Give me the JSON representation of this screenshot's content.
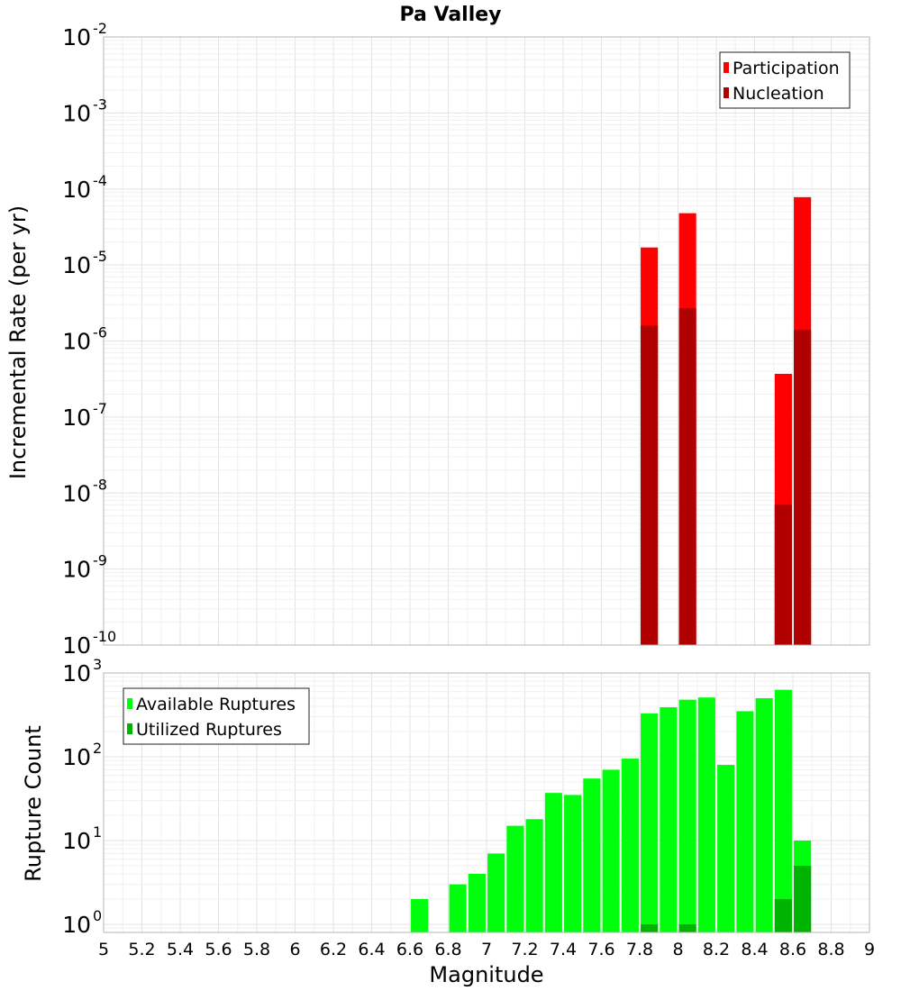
{
  "chart_data": [
    {
      "type": "bar",
      "title": "Pa Valley",
      "ylabel": "Incremental Rate (per yr)",
      "xlabel": "",
      "xlim": [
        5,
        9
      ],
      "ylim": [
        1e-10,
        0.01
      ],
      "yscale": "log",
      "y_ticks": [
        {
          "base": "10",
          "exp": "-10",
          "value": 1e-10
        },
        {
          "base": "10",
          "exp": "-9",
          "value": 1e-09
        },
        {
          "base": "10",
          "exp": "-8",
          "value": 1e-08
        },
        {
          "base": "10",
          "exp": "-7",
          "value": 1e-07
        },
        {
          "base": "10",
          "exp": "-6",
          "value": 1e-06
        },
        {
          "base": "10",
          "exp": "-5",
          "value": 1e-05
        },
        {
          "base": "10",
          "exp": "-4",
          "value": 0.0001
        },
        {
          "base": "10",
          "exp": "-3",
          "value": 0.001
        },
        {
          "base": "10",
          "exp": "-2",
          "value": 0.01
        }
      ],
      "grid": true,
      "legend_position": "top-right",
      "bar_width": 0.09,
      "series": [
        {
          "name": "Participation",
          "color": "#ff0000",
          "x": [
            7.85,
            8.05,
            8.55,
            8.65
          ],
          "values": [
            1.7e-05,
            4.8e-05,
            3.7e-07,
            7.8e-05
          ]
        },
        {
          "name": "Nucleation",
          "color": "#b00000",
          "x": [
            7.85,
            8.05,
            8.55,
            8.65
          ],
          "values": [
            1.6e-06,
            2.7e-06,
            7e-09,
            1.4e-06
          ]
        }
      ]
    },
    {
      "type": "bar",
      "title": "",
      "ylabel": "Rupture Count",
      "xlabel": "Magnitude",
      "xlim": [
        5,
        9
      ],
      "ylim": [
        0.8,
        1000
      ],
      "yscale": "log",
      "x_ticks": [
        "5",
        "5.2",
        "5.4",
        "5.6",
        "5.8",
        "6",
        "6.2",
        "6.4",
        "6.6",
        "6.8",
        "7",
        "7.2",
        "7.4",
        "7.6",
        "7.8",
        "8",
        "8.2",
        "8.4",
        "8.6",
        "8.8",
        "9"
      ],
      "y_ticks": [
        {
          "base": "10",
          "exp": "0",
          "value": 1
        },
        {
          "base": "10",
          "exp": "1",
          "value": 10
        },
        {
          "base": "10",
          "exp": "2",
          "value": 100
        },
        {
          "base": "10",
          "exp": "3",
          "value": 1000
        }
      ],
      "grid": true,
      "legend_position": "top-left",
      "bar_width": 0.09,
      "series": [
        {
          "name": "Available Ruptures",
          "color": "#00ff0d",
          "x": [
            6.65,
            6.85,
            6.95,
            7.05,
            7.15,
            7.25,
            7.35,
            7.45,
            7.55,
            7.65,
            7.75,
            7.85,
            7.95,
            8.05,
            8.15,
            8.25,
            8.35,
            8.45,
            8.55,
            8.65
          ],
          "values": [
            2,
            3,
            4,
            7,
            15,
            18,
            37,
            35,
            55,
            70,
            95,
            330,
            390,
            480,
            510,
            80,
            350,
            500,
            630,
            10
          ]
        },
        {
          "name": "Utilized Ruptures",
          "color": "#00b300",
          "x": [
            7.85,
            8.05,
            8.55,
            8.65
          ],
          "values": [
            1,
            1,
            2,
            5
          ]
        }
      ]
    }
  ]
}
